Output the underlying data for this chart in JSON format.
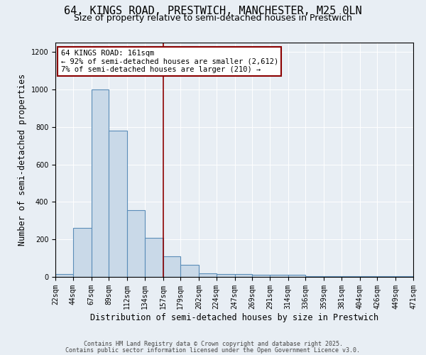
{
  "title1": "64, KINGS ROAD, PRESTWICH, MANCHESTER, M25 0LN",
  "title2": "Size of property relative to semi-detached houses in Prestwich",
  "xlabel": "Distribution of semi-detached houses by size in Prestwich",
  "ylabel": "Number of semi-detached properties",
  "bar_left_edges": [
    22,
    44,
    67,
    89,
    112,
    134,
    157,
    179,
    202,
    224,
    247,
    269,
    291,
    314,
    336,
    359,
    381,
    404,
    426,
    449
  ],
  "bar_widths": [
    22,
    23,
    22,
    23,
    22,
    23,
    22,
    23,
    22,
    23,
    22,
    22,
    23,
    22,
    23,
    22,
    23,
    22,
    23,
    22
  ],
  "bar_heights": [
    15,
    260,
    1000,
    780,
    355,
    210,
    110,
    65,
    20,
    15,
    15,
    10,
    10,
    10,
    5,
    5,
    5,
    5,
    5,
    5
  ],
  "bar_color": "#c9d9e8",
  "bar_edge_color": "#5b8db8",
  "x_tick_labels": [
    "22sqm",
    "44sqm",
    "67sqm",
    "89sqm",
    "112sqm",
    "134sqm",
    "157sqm",
    "179sqm",
    "202sqm",
    "224sqm",
    "247sqm",
    "269sqm",
    "291sqm",
    "314sqm",
    "336sqm",
    "359sqm",
    "381sqm",
    "404sqm",
    "426sqm",
    "449sqm",
    "471sqm"
  ],
  "x_tick_positions": [
    22,
    44,
    67,
    89,
    112,
    134,
    157,
    179,
    202,
    224,
    247,
    269,
    291,
    314,
    336,
    359,
    381,
    404,
    426,
    449,
    471
  ],
  "vline_x": 157,
  "vline_color": "#8b0000",
  "ylim": [
    0,
    1250
  ],
  "yticks": [
    0,
    200,
    400,
    600,
    800,
    1000,
    1200
  ],
  "xlim": [
    22,
    471
  ],
  "background_color": "#e8eef4",
  "annotation_text": "64 KINGS ROAD: 161sqm\n← 92% of semi-detached houses are smaller (2,612)\n7% of semi-detached houses are larger (210) →",
  "annotation_box_facecolor": "#ffffff",
  "annotation_box_edgecolor": "#8b0000",
  "footer1": "Contains HM Land Registry data © Crown copyright and database right 2025.",
  "footer2": "Contains public sector information licensed under the Open Government Licence v3.0.",
  "title1_fontsize": 11,
  "title2_fontsize": 9,
  "axis_label_fontsize": 8.5,
  "tick_fontsize": 7,
  "annotation_fontsize": 7.5,
  "footer_fontsize": 6
}
